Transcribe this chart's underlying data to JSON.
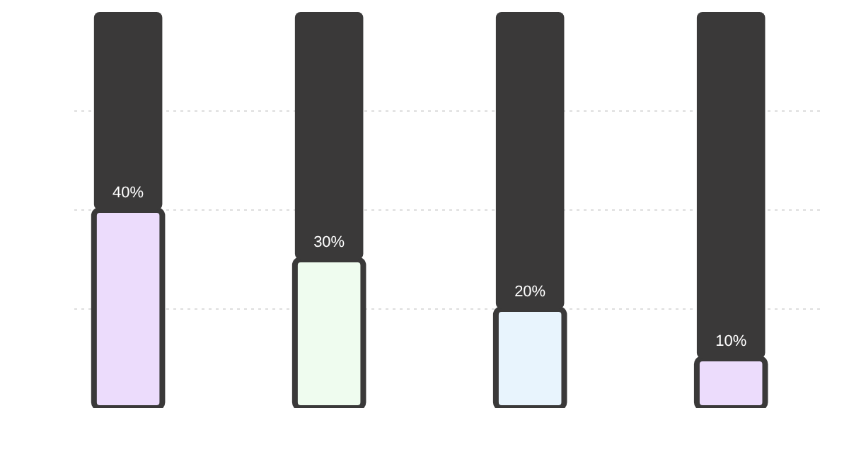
{
  "chart_data": {
    "type": "bar",
    "stacked": true,
    "grid": "y",
    "categories": [
      null,
      null,
      null,
      null
    ],
    "series": [
      {
        "colors": [
          "#ecdcfc",
          "#effcef",
          "#e8f4fd",
          "#ecdcfc"
        ],
        "values": [
          40,
          30,
          20,
          10
        ],
        "value_labels": [
          "40%",
          "30%",
          "20%",
          "10%"
        ]
      },
      {
        "color": "#3a3939",
        "values": [
          40,
          50,
          60,
          70
        ]
      }
    ]
  }
}
